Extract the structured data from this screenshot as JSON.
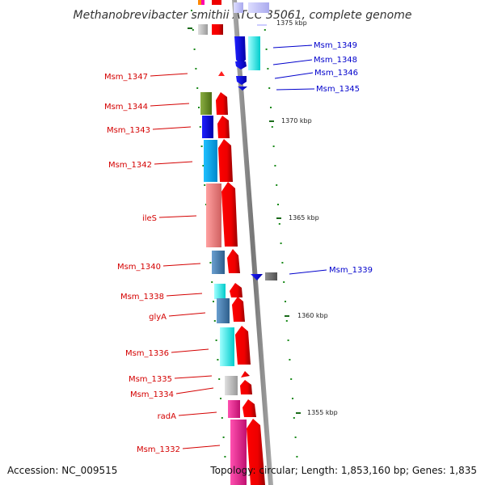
{
  "header": {
    "title": "Methanobrevibacter smithii ATCC 35061, complete genome"
  },
  "footer": {
    "accession": "Accession: NC_009515",
    "summary": "Topology: circular; Length: 1,853,160 bp; Genes: 1,835"
  },
  "colors": {
    "reverse_strand_label": "#d40000",
    "forward_strand_label": "#0000cc",
    "backbone": "#888888"
  },
  "scale_ticks": [
    {
      "label": "1375 kbp"
    },
    {
      "label": "1370 kbp"
    },
    {
      "label": "1365 kbp"
    },
    {
      "label": "1360 kbp"
    },
    {
      "label": "1355 kbp"
    }
  ],
  "genes_reverse": [
    {
      "name": "Msm_1347",
      "color": "#ff0000"
    },
    {
      "name": "Msm_1344",
      "color": "#6b8e23"
    },
    {
      "name": "Msm_1343",
      "color": "#0000ff"
    },
    {
      "name": "Msm_1342",
      "color": "#00aaff"
    },
    {
      "name": "ileS",
      "color": "#f08080"
    },
    {
      "name": "Msm_1340",
      "color": "#4682b4"
    },
    {
      "name": "Msm_1338",
      "color": "#00ffff"
    },
    {
      "name": "glyA",
      "color": "#4682b4"
    },
    {
      "name": "Msm_1336",
      "color": "#00ffff"
    },
    {
      "name": "Msm_1335",
      "color": "#c0c0c0"
    },
    {
      "name": "Msm_1334",
      "color": "#c0c0c0"
    },
    {
      "name": "radA",
      "color": "#ff1493"
    },
    {
      "name": "Msm_1332",
      "color": "#ff1493"
    }
  ],
  "genes_forward": [
    {
      "name": "Msm_1349",
      "color": "#0000ff"
    },
    {
      "name": "Msm_1348",
      "color": "#00ffff"
    },
    {
      "name": "Msm_1346",
      "color": "#0000ff"
    },
    {
      "name": "Msm_1345",
      "color": "#0000ff"
    },
    {
      "name": "Msm_1339",
      "color": "#0000ff"
    }
  ]
}
